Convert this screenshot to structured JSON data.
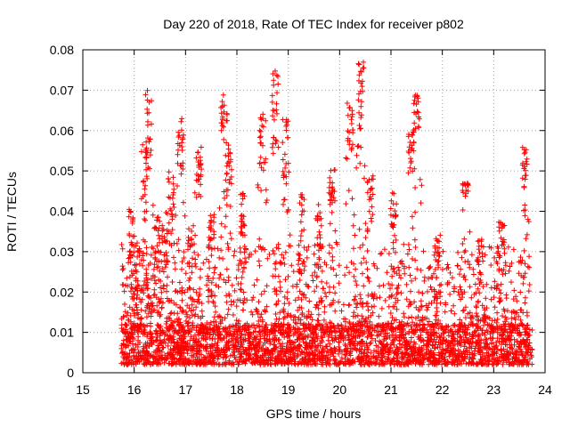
{
  "chart_data": {
    "type": "scatter",
    "title": "Day 220 of 2018, Rate Of TEC Index for receiver p802",
    "xlabel": "GPS time / hours",
    "ylabel": "ROTI / TECUs",
    "xlim": [
      15,
      24
    ],
    "ylim": [
      0,
      0.08
    ],
    "x_ticks": [
      "15",
      "16",
      "17",
      "18",
      "19",
      "20",
      "21",
      "22",
      "23",
      "24"
    ],
    "y_ticks": [
      "0",
      "0.01",
      "0.02",
      "0.03",
      "0.04",
      "0.05",
      "0.06",
      "0.07",
      "0.08"
    ],
    "grid": true,
    "marker": "+",
    "series_color": "#ff0000",
    "data_range": [
      15.75,
      23.75
    ],
    "baseline_band": [
      0.002,
      0.012
    ],
    "clusters": [
      {
        "x": 15.95,
        "y_min": 0.02,
        "y_max": 0.041
      },
      {
        "x": 16.05,
        "y_min": 0.02,
        "y_max": 0.036
      },
      {
        "x": 16.2,
        "y_min": 0.02,
        "y_max": 0.058
      },
      {
        "x": 16.28,
        "y_min": 0.05,
        "y_max": 0.07
      },
      {
        "x": 16.45,
        "y_min": 0.025,
        "y_max": 0.04
      },
      {
        "x": 16.6,
        "y_min": 0.025,
        "y_max": 0.04
      },
      {
        "x": 16.72,
        "y_min": 0.035,
        "y_max": 0.05
      },
      {
        "x": 16.9,
        "y_min": 0.05,
        "y_max": 0.063
      },
      {
        "x": 17.1,
        "y_min": 0.02,
        "y_max": 0.038
      },
      {
        "x": 17.25,
        "y_min": 0.045,
        "y_max": 0.057
      },
      {
        "x": 17.5,
        "y_min": 0.03,
        "y_max": 0.04
      },
      {
        "x": 17.75,
        "y_min": 0.06,
        "y_max": 0.069
      },
      {
        "x": 17.85,
        "y_min": 0.045,
        "y_max": 0.057
      },
      {
        "x": 18.1,
        "y_min": 0.03,
        "y_max": 0.045
      },
      {
        "x": 18.5,
        "y_min": 0.05,
        "y_max": 0.065
      },
      {
        "x": 18.75,
        "y_min": 0.055,
        "y_max": 0.075
      },
      {
        "x": 18.95,
        "y_min": 0.04,
        "y_max": 0.063
      },
      {
        "x": 19.25,
        "y_min": 0.025,
        "y_max": 0.045
      },
      {
        "x": 19.6,
        "y_min": 0.025,
        "y_max": 0.042
      },
      {
        "x": 19.85,
        "y_min": 0.04,
        "y_max": 0.055
      },
      {
        "x": 20.2,
        "y_min": 0.055,
        "y_max": 0.067
      },
      {
        "x": 20.42,
        "y_min": 0.06,
        "y_max": 0.077
      },
      {
        "x": 20.6,
        "y_min": 0.035,
        "y_max": 0.05
      },
      {
        "x": 21.05,
        "y_min": 0.03,
        "y_max": 0.045
      },
      {
        "x": 21.4,
        "y_min": 0.05,
        "y_max": 0.06
      },
      {
        "x": 21.5,
        "y_min": 0.06,
        "y_max": 0.07
      },
      {
        "x": 21.9,
        "y_min": 0.02,
        "y_max": 0.035
      },
      {
        "x": 22.45,
        "y_min": 0.044,
        "y_max": 0.047
      },
      {
        "x": 22.75,
        "y_min": 0.02,
        "y_max": 0.034
      },
      {
        "x": 23.15,
        "y_min": 0.028,
        "y_max": 0.038
      },
      {
        "x": 23.62,
        "y_min": 0.038,
        "y_max": 0.056
      }
    ]
  }
}
